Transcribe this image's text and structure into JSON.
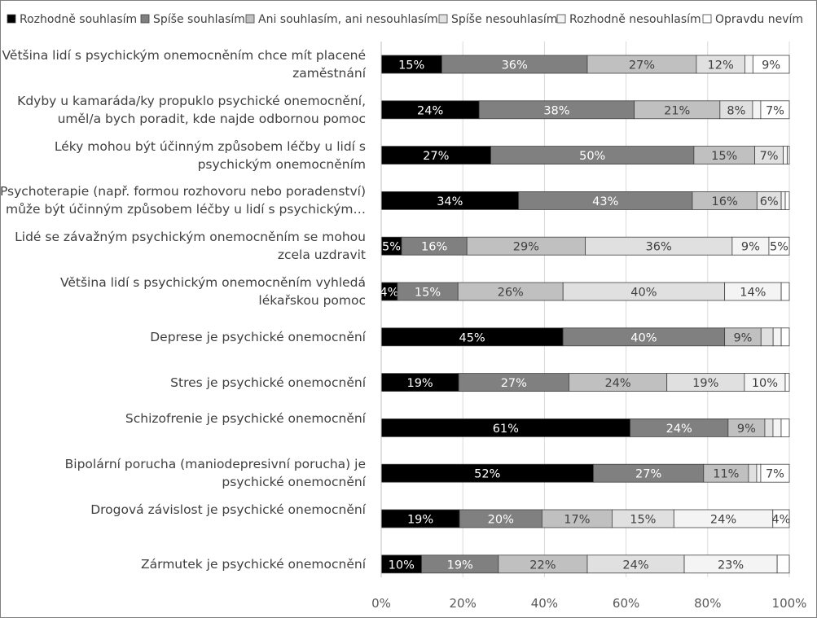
{
  "chart_data": {
    "type": "bar",
    "orientation": "horizontal",
    "stacked": "percent",
    "title": "",
    "xlabel": "",
    "ylabel": "",
    "xlim": [
      0,
      100
    ],
    "xticks": [
      "0%",
      "20%",
      "40%",
      "60%",
      "80%",
      "100%"
    ],
    "legend_position": "top",
    "categories": [
      "Většina lidí s psychickým onemocněním chce mít placené zaměstnání",
      "Kdyby u kamaráda/ky propuklo psychické onemocnění, uměl/a bych poradit, kde najde odbornou pomoc",
      "Léky mohou být účinným způsobem léčby u lidí s psychickým onemocněním",
      "Psychoterapie (např. formou rozhovoru nebo poradenství) může být účinným způsobem léčby u lidí s psychickým…",
      "Lidé se závažným psychickým onemocněním se mohou zcela uzdravit",
      "Většina lidí s psychickým onemocněním vyhledá lékařskou pomoc",
      "Deprese je psychické onemocnění",
      "Stres je psychické onemocnění",
      "Schizofrenie je psychické onemocnění",
      "Bipolární porucha (maniodepresivní porucha) je psychické onemocnění",
      "Drogová závislost je psychické onemocnění",
      "Zármutek je psychické onemocnění"
    ],
    "series": [
      {
        "name": "Rozhodně souhlasím",
        "color": "#000000",
        "label_color": "#ffffff",
        "values": [
          15,
          24,
          27,
          34,
          5,
          4,
          45,
          19,
          61,
          52,
          19,
          10
        ],
        "labels": [
          "15%",
          "24%",
          "27%",
          "34%",
          "5%",
          "4%",
          "45%",
          "19%",
          "61%",
          "52%",
          "19%",
          "10%"
        ]
      },
      {
        "name": "Spíše souhlasím",
        "color": "#808080",
        "label_color": "#ffffff",
        "values": [
          36,
          38,
          50,
          43,
          16,
          15,
          40,
          27,
          24,
          27,
          20,
          19
        ],
        "labels": [
          "36%",
          "38%",
          "50%",
          "43%",
          "16%",
          "15%",
          "40%",
          "27%",
          "24%",
          "27%",
          "20%",
          "19%"
        ]
      },
      {
        "name": "Ani souhlasím, ani nesouhlasím",
        "color": "#c0c0c0",
        "label_color": "#404040",
        "values": [
          27,
          21,
          15,
          16,
          29,
          26,
          9,
          24,
          9,
          11,
          17,
          22
        ],
        "labels": [
          "27%",
          "21%",
          "15%",
          "16%",
          "29%",
          "26%",
          "9%",
          "24%",
          "9%",
          "11%",
          "17%",
          "22%"
        ]
      },
      {
        "name": "Spíše nesouhlasím",
        "color": "#e0e0e0",
        "label_color": "#404040",
        "values": [
          12,
          8,
          7,
          6,
          36,
          40,
          3,
          19,
          2,
          2,
          15,
          24
        ],
        "labels": [
          "12%",
          "8%",
          "7%",
          "6%",
          "36%",
          "40%",
          "",
          "19%",
          "",
          "",
          "15%",
          "24%"
        ]
      },
      {
        "name": "Rozhodně nesouhlasím",
        "color": "#f4f4f4",
        "label_color": "#404040",
        "values": [
          2,
          2,
          1,
          1,
          9,
          14,
          2,
          10,
          2,
          1,
          24,
          23
        ],
        "labels": [
          "",
          "",
          "",
          "",
          "9%",
          "14%",
          "",
          "10%",
          "",
          "",
          "24%",
          "23%"
        ]
      },
      {
        "name": "Opravdu nevím",
        "color": "#ffffff",
        "label_color": "#404040",
        "values": [
          9,
          7,
          0.5,
          1,
          5,
          2,
          2,
          1,
          2,
          7,
          4,
          3
        ],
        "labels": [
          "9%",
          "7%",
          "",
          "",
          "5%",
          "",
          "",
          "",
          "",
          "7%",
          "4%",
          ""
        ]
      }
    ]
  }
}
